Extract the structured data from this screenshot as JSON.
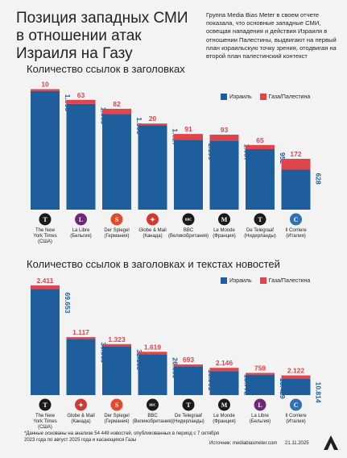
{
  "title": "Позиция западных СМИ в отношении атак Израиля на Газу",
  "intro": "Группа Media Bias Meter в своем отчете показала, что основные западные СМИ, освещая нападения и действия Израиля в отношении Палестины, выдвигают на первый план израильскую точку зрения, отодвигая на второй план палестинский контекст",
  "footnote": "*Данные основаны на анализе 54 449 новостей, опубликованных в период с 7 октября 2023 года по август 2025 года и касающихся Газы",
  "source": "Источник: mediabiasmeter.com",
  "date": "21.11.2025",
  "colors": {
    "israel": "#1f5e9c",
    "gaza": "#e0454b"
  },
  "chart_data": [
    {
      "type": "bar",
      "title": "Количество ссылок в заголовках",
      "categories": [
        "The New York Times (США)",
        "La Libre (Бельгия)",
        "Der Spiegel (Германия)",
        "Globe & Mail (Канада)",
        "BBC (Великобритания)",
        "Le Monde (Франция)",
        "De Telegraaf (Нидерланды)",
        "Il Corriere (Италия)"
      ],
      "series": [
        {
          "name": "Израиль",
          "values": [
            "1.868",
            "1.665",
            "1.505",
            "1.327",
            "1.100",
            "1.087",
            "952",
            "628"
          ]
        },
        {
          "name": "Газа/Палестина",
          "values": [
            "10",
            "63",
            "82",
            "20",
            "91",
            "93",
            "65",
            "172"
          ]
        }
      ],
      "icons": [
        "nyt-icon",
        "la-libre-icon",
        "der-spiegel-icon",
        "globe-mail-icon",
        "bbc-icon",
        "le-monde-icon",
        "de-telegraaf-icon",
        "il-corriere-icon"
      ]
    },
    {
      "type": "bar",
      "title": "Количество ссылок в заголовках и текстах новостей",
      "categories": [
        "The New York Times (США)",
        "Globe & Mail (Канада)",
        "Der Spiegel (Германия)",
        "BBC (Великобритания)",
        "De Telegraaf (Нидерланды)",
        "Le Monde (Франция)",
        "La Libre (Бельгия)",
        "Il Corriere (Италия)"
      ],
      "series": [
        {
          "name": "Израиль",
          "values": [
            "69.653",
            "36.939",
            "32.169",
            "26.839",
            "18.961",
            "15.772",
            "13.429",
            "10.814"
          ]
        },
        {
          "name": "Газа/Палестина",
          "values": [
            "2.411",
            "1.117",
            "1.323",
            "1.619",
            "693",
            "2.146",
            "759",
            "2.122"
          ]
        }
      ],
      "icons": [
        "nyt-icon",
        "globe-mail-icon",
        "der-spiegel-icon",
        "bbc-icon",
        "de-telegraaf-icon",
        "le-monde-icon",
        "la-libre-icon",
        "il-corriere-icon"
      ]
    }
  ]
}
